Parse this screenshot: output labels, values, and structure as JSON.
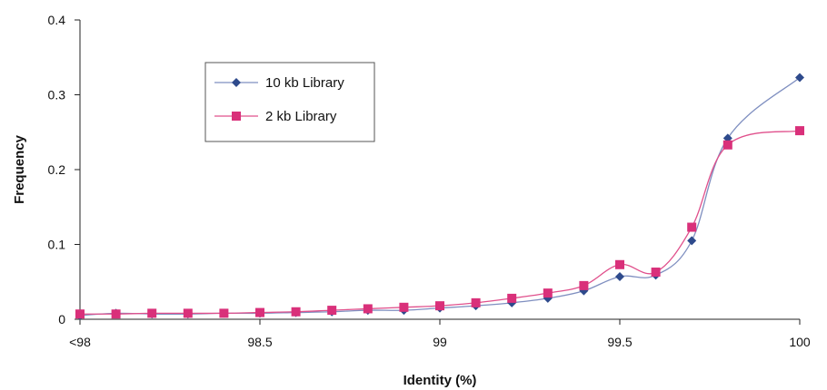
{
  "chart_data": {
    "type": "line",
    "title": "",
    "xlabel": "Identity (%)",
    "ylabel": "Frequency",
    "xlim": [
      98,
      100
    ],
    "ylim": [
      0,
      0.4
    ],
    "grid": false,
    "legend_position": "upper-left",
    "x_ticks": [
      {
        "value": 98,
        "label": "<98"
      },
      {
        "value": 98.5,
        "label": "98.5"
      },
      {
        "value": 99,
        "label": "99"
      },
      {
        "value": 99.5,
        "label": "99.5"
      },
      {
        "value": 100,
        "label": "100"
      }
    ],
    "y_ticks": [
      {
        "value": 0,
        "label": "0"
      },
      {
        "value": 0.1,
        "label": "0.1"
      },
      {
        "value": 0.2,
        "label": "0.2"
      },
      {
        "value": 0.3,
        "label": "0.3"
      },
      {
        "value": 0.4,
        "label": "0.4"
      }
    ],
    "series": [
      {
        "name": "10 kb Library",
        "color": "#2e4a8c",
        "line_color": "#7f8fc0",
        "marker": "diamond",
        "x": [
          98.0,
          98.1,
          98.2,
          98.3,
          98.4,
          98.5,
          98.6,
          98.7,
          98.8,
          98.9,
          99.0,
          99.1,
          99.2,
          99.3,
          99.4,
          99.5,
          99.6,
          99.7,
          99.8,
          100.0
        ],
        "y": [
          0.005,
          0.008,
          0.007,
          0.007,
          0.008,
          0.008,
          0.009,
          0.01,
          0.012,
          0.012,
          0.015,
          0.018,
          0.022,
          0.028,
          0.038,
          0.057,
          0.059,
          0.105,
          0.242,
          0.323
        ]
      },
      {
        "name": "2 kb Library",
        "color": "#d9307a",
        "line_color": "#e0508c",
        "marker": "square",
        "x": [
          98.0,
          98.1,
          98.2,
          98.3,
          98.4,
          98.5,
          98.6,
          98.7,
          98.8,
          98.9,
          99.0,
          99.1,
          99.2,
          99.3,
          99.4,
          99.5,
          99.6,
          99.7,
          99.8,
          100.0
        ],
        "y": [
          0.007,
          0.007,
          0.008,
          0.008,
          0.008,
          0.009,
          0.01,
          0.012,
          0.014,
          0.016,
          0.018,
          0.022,
          0.028,
          0.035,
          0.045,
          0.073,
          0.063,
          0.123,
          0.233,
          0.252
        ]
      }
    ]
  }
}
